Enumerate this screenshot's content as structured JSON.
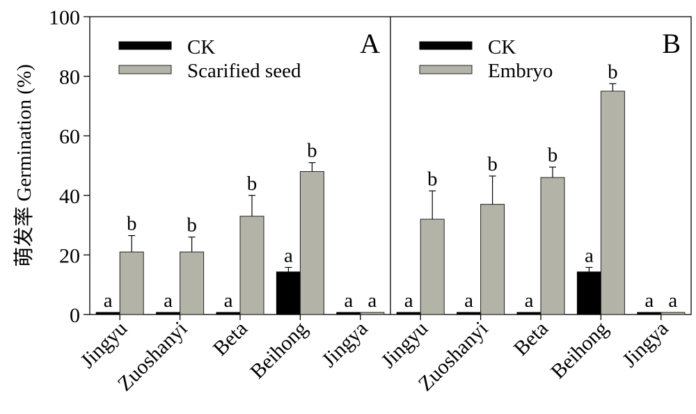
{
  "chart_data": {
    "type": "bar",
    "ylabel": "萌发率 Germination (%)",
    "ylim": [
      0,
      100
    ],
    "yticks": [
      0,
      20,
      40,
      60,
      80,
      100
    ],
    "grid": false,
    "colors": {
      "CK": "#000000",
      "Treatment": "#b3b3a8",
      "Treatment_stroke": "#222222"
    },
    "panels": [
      {
        "label": "A",
        "categories": [
          "Jingyu",
          "Zuoshanyi",
          "Beta",
          "Beihong",
          "Jingya"
        ],
        "series": [
          {
            "name": "CK",
            "values": [
              0.7,
              0.7,
              0.7,
              14.3,
              0.7
            ],
            "errors": [
              0,
              0,
              0,
              1.5,
              0
            ],
            "sig": [
              "a",
              "a",
              "a",
              "a",
              "a"
            ]
          },
          {
            "name": "Scarified seed",
            "values": [
              21,
              21,
              33,
              48,
              0.7
            ],
            "errors": [
              5.5,
              5,
              7,
              3,
              0
            ],
            "sig": [
              "b",
              "b",
              "b",
              "b",
              "a"
            ]
          }
        ],
        "legend": [
          "CK",
          "Scarified seed"
        ]
      },
      {
        "label": "B",
        "categories": [
          "Jingyu",
          "Zuoshanyi",
          "Beta",
          "Beihong",
          "Jingya"
        ],
        "series": [
          {
            "name": "CK",
            "values": [
              0.7,
              0.7,
              0.7,
              14.3,
              0.7
            ],
            "errors": [
              0,
              0,
              0,
              1.5,
              0
            ],
            "sig": [
              "a",
              "a",
              "a",
              "a",
              "a"
            ]
          },
          {
            "name": "Embryo",
            "values": [
              32,
              37,
              46,
              75,
              0.7
            ],
            "errors": [
              9.5,
              9.5,
              3.5,
              2.5,
              0
            ],
            "sig": [
              "b",
              "b",
              "b",
              "b",
              "a"
            ]
          }
        ],
        "legend": [
          "CK",
          "Embryo"
        ]
      }
    ]
  }
}
